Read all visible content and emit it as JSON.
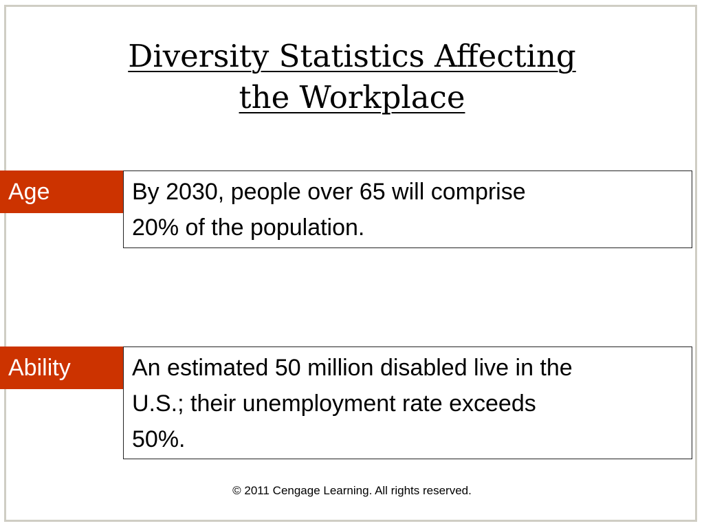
{
  "slide": {
    "title_line1": "Diversity Statistics Affecting",
    "title_line2": "the Workplace",
    "rows": [
      {
        "label": "Age",
        "text_line1": "By 2030, people over 65 will comprise",
        "text_line2": "20% of the population."
      },
      {
        "label": "Ability",
        "text_line1": "An estimated 50 million disabled live in the",
        "text_line2": "U.S.; their unemployment rate exceeds",
        "text_line3": "50%."
      }
    ],
    "footer": "© 2011 Cengage Learning. All rights reserved."
  },
  "colors": {
    "label_background": "#cc3300",
    "label_text": "#ffffff",
    "frame_border": "#cfcdc4",
    "box_border": "#222222"
  }
}
